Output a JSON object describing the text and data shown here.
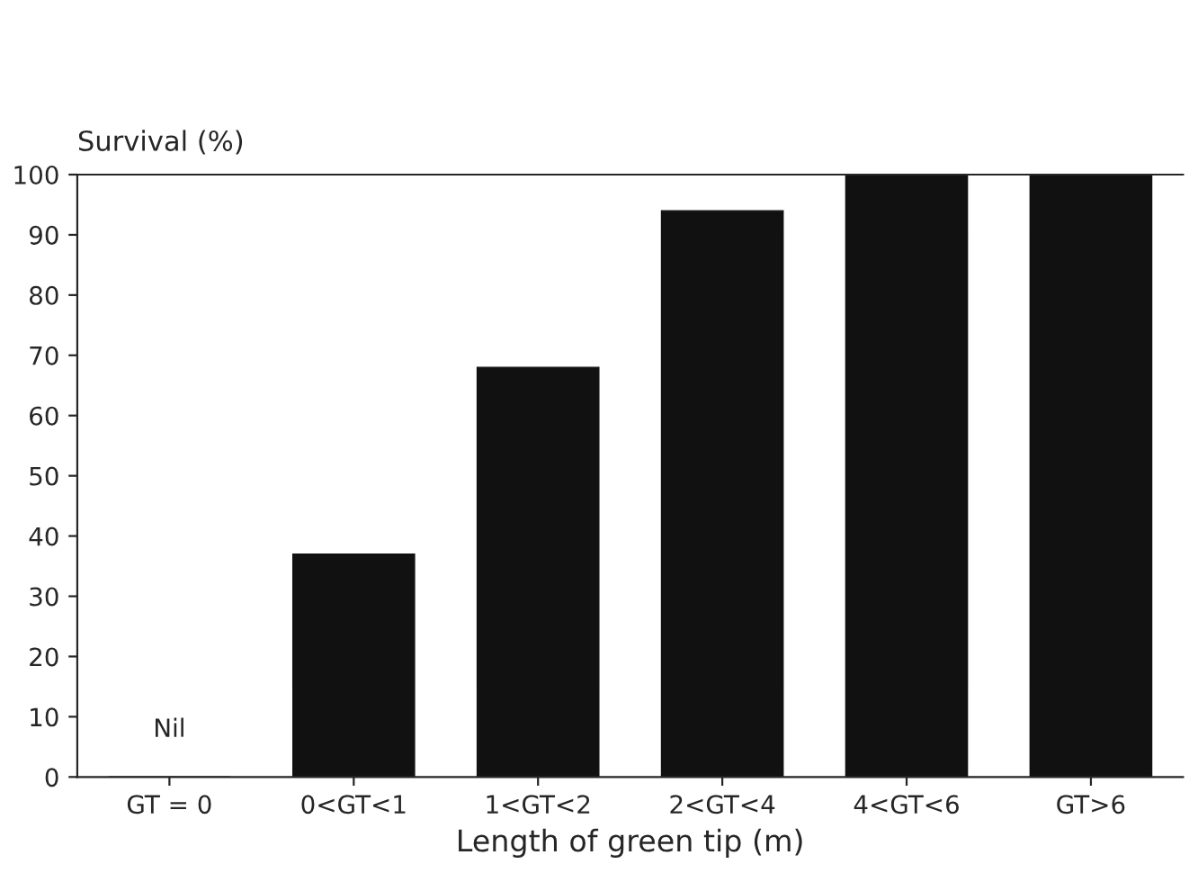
{
  "chart_data": {
    "type": "bar",
    "xlabel": "Length of green tip (m)",
    "ylabel": "Survival (%)",
    "categories": [
      "GT = 0",
      "0<GT<1",
      "1<GT<2",
      "2<GT<4",
      "4<GT<6",
      "GT>6"
    ],
    "values": [
      0,
      37,
      68,
      94,
      100,
      100
    ],
    "color": "#111111",
    "ylim": [
      0,
      100
    ],
    "yticks": [
      0,
      10,
      20,
      30,
      40,
      50,
      60,
      70,
      80,
      90,
      100
    ],
    "annotations": [
      "Nil"
    ],
    "grid": false,
    "legend": false
  }
}
